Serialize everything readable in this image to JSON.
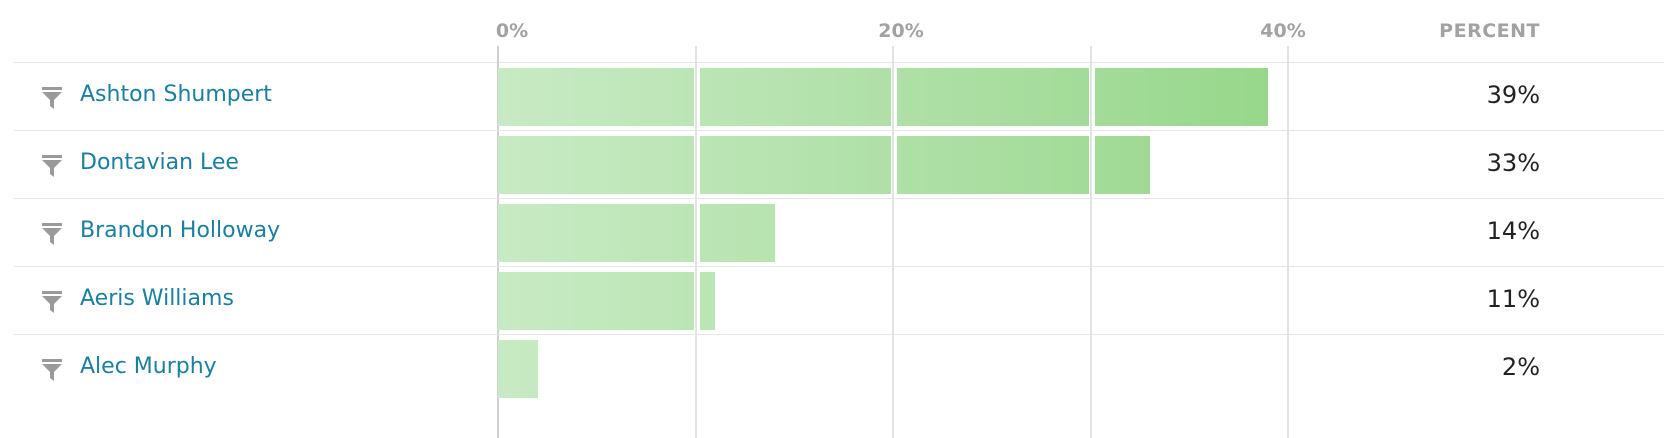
{
  "chart_data": {
    "type": "bar",
    "orientation": "horizontal",
    "x_ticks": [
      "0%",
      "20%",
      "40%"
    ],
    "value_header": "PERCENT",
    "xlim": [
      0,
      40
    ],
    "categories": [
      "Ashton Shumpert",
      "Dontavian Lee",
      "Brandon Holloway",
      "Aeris Williams",
      "Alec Murphy"
    ],
    "values": [
      39,
      33,
      14,
      11,
      2
    ],
    "value_labels": [
      "39%",
      "33%",
      "14%",
      "11%",
      "2%"
    ],
    "colors": {
      "bar_start": "#c8eac4",
      "bar_end": "#96d68a",
      "name_link": "#1a7fa0"
    }
  }
}
